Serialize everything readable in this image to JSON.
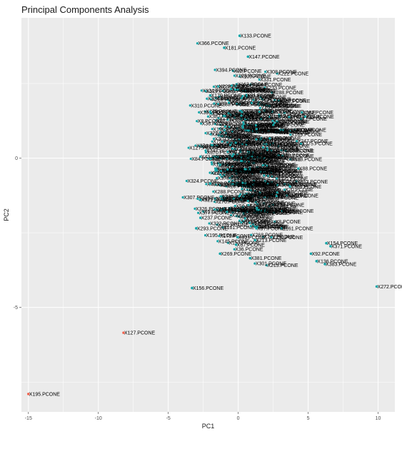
{
  "chart_data": {
    "type": "scatter",
    "title": "Principal Components Analysis",
    "xlabel": "PC1",
    "ylabel": "PC2",
    "xlim": [
      -15.5,
      11.2
    ],
    "ylim": [
      -8.5,
      4.7
    ],
    "x_ticks": [
      -15,
      -10,
      -5,
      0,
      5,
      10
    ],
    "x_tick_labels": [
      "-15",
      "-10",
      "-5",
      "0",
      "5",
      "10"
    ],
    "y_ticks": [
      -5,
      0
    ],
    "y_tick_labels": [
      "-5",
      "0"
    ],
    "grid": true,
    "colors": {
      "panel": "#ebebeb",
      "grid": "#ffffff",
      "point_main": "#14a5a8",
      "point_outlier": "#f0634f",
      "text": "#000000"
    },
    "cluster": {
      "center": [
        0.4,
        0.2
      ],
      "spread": [
        1.6,
        1.3
      ],
      "count": 420,
      "label_suffix": ".PCONE"
    },
    "points": [
      {
        "label": "X133.PCONE",
        "x": 0.1,
        "y": 4.1,
        "group": "main"
      },
      {
        "label": "X181.PCONE",
        "x": -1.0,
        "y": 3.7,
        "group": "main"
      },
      {
        "label": "X147.PCONE",
        "x": 0.7,
        "y": 3.4,
        "group": "main"
      },
      {
        "label": "X88.PCONE",
        "x": 4.3,
        "y": -0.35,
        "group": "main"
      },
      {
        "label": "X363.PCONE",
        "x": 3.7,
        "y": -0.95,
        "group": "main"
      },
      {
        "label": "X377.PCONE",
        "x": -0.8,
        "y": -1.8,
        "group": "main"
      },
      {
        "label": "X321.PCONE",
        "x": -2.7,
        "y": -1.4,
        "group": "main"
      },
      {
        "label": "X237.PCONE",
        "x": -2.7,
        "y": -2.0,
        "group": "main"
      },
      {
        "label": "X293.PCONE",
        "x": -3.0,
        "y": -2.35,
        "group": "main"
      },
      {
        "label": "X220.PCONE",
        "x": -2.0,
        "y": -0.85,
        "group": "main"
      },
      {
        "label": "X43.PCONE",
        "x": -2.7,
        "y": 0.05,
        "group": "main"
      },
      {
        "label": "X35.PCONE",
        "x": -2.0,
        "y": 1.55,
        "group": "main"
      },
      {
        "label": "X170.PCONE",
        "x": -2.0,
        "y": 2.1,
        "group": "main"
      },
      {
        "label": "X161.PCONE",
        "x": 3.1,
        "y": -2.35,
        "group": "main"
      },
      {
        "label": "X97.PCONE",
        "x": 1.3,
        "y": -2.35,
        "group": "main"
      },
      {
        "label": "X91.PCONE",
        "x": -0.05,
        "y": -2.65,
        "group": "main"
      },
      {
        "label": "X67.PCONE",
        "x": -0.15,
        "y": -2.9,
        "group": "main"
      },
      {
        "label": "X213.PCONE",
        "x": 1.2,
        "y": -2.75,
        "group": "main"
      },
      {
        "label": "X269.PCONE",
        "x": -1.3,
        "y": -3.2,
        "group": "main"
      },
      {
        "label": "X381.PCONE",
        "x": 0.85,
        "y": -3.35,
        "group": "main"
      },
      {
        "label": "X154.PCONE",
        "x": 6.3,
        "y": -2.85,
        "group": "main"
      },
      {
        "label": "X371.PCONE",
        "x": 6.6,
        "y": -2.95,
        "group": "main"
      },
      {
        "label": "X92.PCONE",
        "x": 5.2,
        "y": -3.2,
        "group": "main"
      },
      {
        "label": "X136.PCONE",
        "x": 5.6,
        "y": -3.45,
        "group": "main"
      },
      {
        "label": "X383.PCONE",
        "x": 6.2,
        "y": -3.55,
        "group": "main"
      },
      {
        "label": "X272.PCONE",
        "x": 9.9,
        "y": -4.3,
        "group": "main"
      },
      {
        "label": "X156.PCONE",
        "x": -3.3,
        "y": -4.35,
        "group": "main"
      },
      {
        "label": "X127.PCONE",
        "x": -8.2,
        "y": -5.85,
        "group": "outlier"
      },
      {
        "label": "X195.PCONE",
        "x": -15.0,
        "y": -7.9,
        "group": "outlier"
      }
    ]
  }
}
